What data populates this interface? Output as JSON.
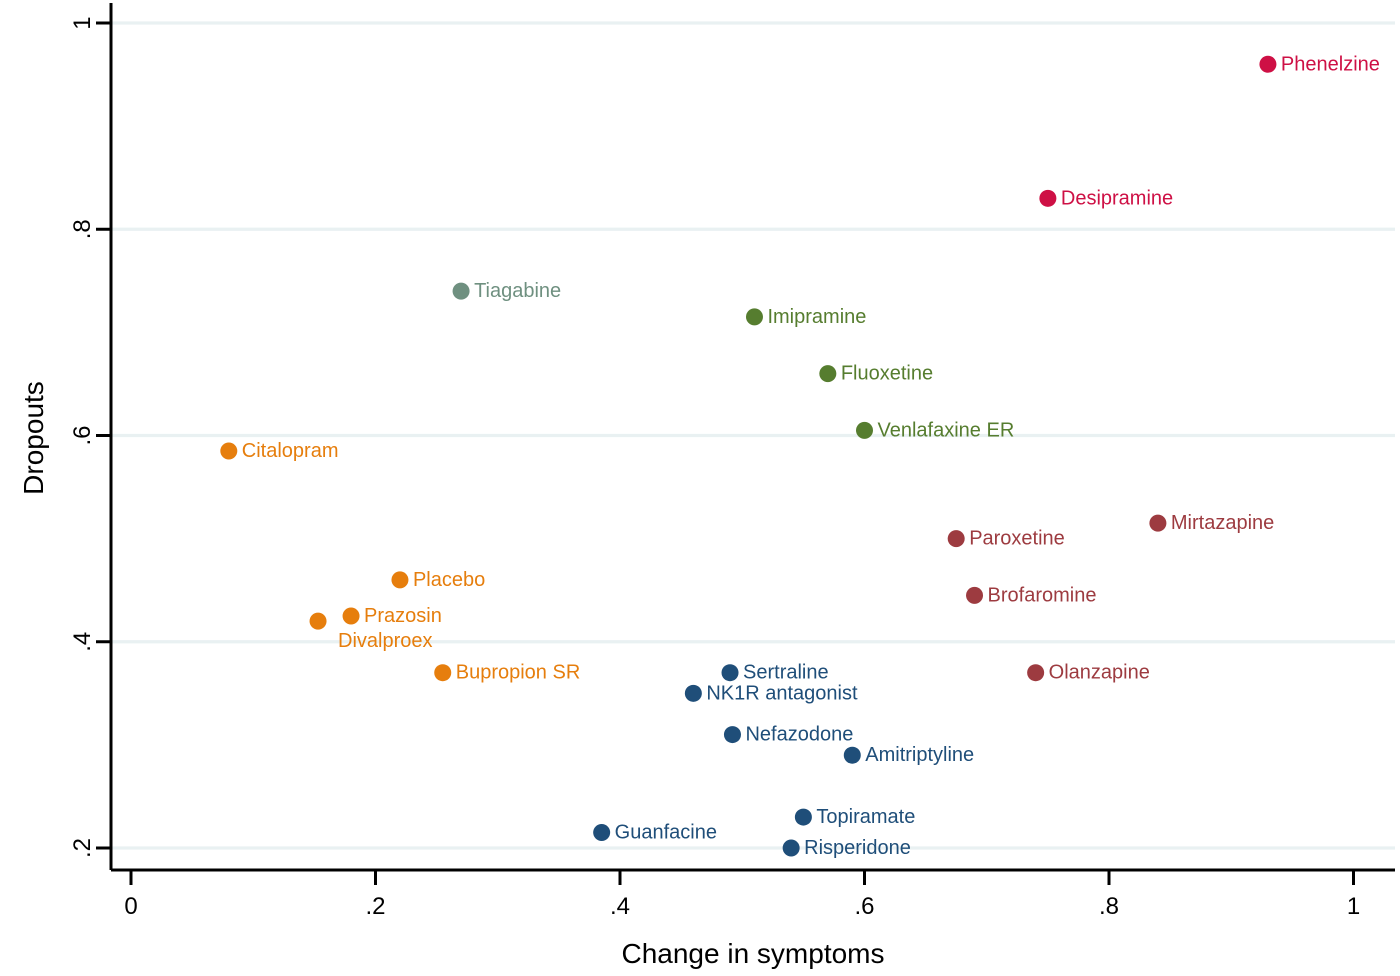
{
  "chart_data": {
    "type": "scatter",
    "title": "",
    "xlabel": "Change in symptoms",
    "ylabel": "Dropouts",
    "xlim": [
      0,
      1.03
    ],
    "ylim": [
      0.17,
      1.02
    ],
    "x_tick_values": [
      0,
      0.2,
      0.4,
      0.6,
      0.8,
      1
    ],
    "x_tick_labels": [
      "0",
      ".2",
      ".4",
      ".6",
      ".8",
      "1"
    ],
    "y_tick_values": [
      0.2,
      0.4,
      0.6,
      0.8,
      1
    ],
    "y_tick_labels": [
      ".2",
      ".4",
      ".6",
      ".8",
      "1"
    ],
    "grid": "horizontal",
    "gridline_color": "#e9f1f2",
    "axis_color": "#000000",
    "background_color": "#ffffff",
    "legend": "none (direct point labels)",
    "palette": {
      "crimson": "#ce1045",
      "maroon": "#9d3b40",
      "olive": "#567d2f",
      "sage": "#6f9080",
      "orange": "#e67e0d",
      "navy": "#1f4e79"
    },
    "points": [
      {
        "name": "Phenelzine",
        "x": 0.93,
        "y": 0.96,
        "group": "crimson",
        "label_pos": "right"
      },
      {
        "name": "Desipramine",
        "x": 0.75,
        "y": 0.83,
        "group": "crimson",
        "label_pos": "right"
      },
      {
        "name": "Tiagabine",
        "x": 0.27,
        "y": 0.74,
        "group": "sage",
        "label_pos": "right"
      },
      {
        "name": "Imipramine",
        "x": 0.51,
        "y": 0.715,
        "group": "olive",
        "label_pos": "right"
      },
      {
        "name": "Fluoxetine",
        "x": 0.57,
        "y": 0.66,
        "group": "olive",
        "label_pos": "right"
      },
      {
        "name": "Venlafaxine ER",
        "x": 0.6,
        "y": 0.605,
        "group": "olive",
        "label_pos": "right"
      },
      {
        "name": "Citalopram",
        "x": 0.08,
        "y": 0.585,
        "group": "orange",
        "label_pos": "right"
      },
      {
        "name": "Mirtazapine",
        "x": 0.84,
        "y": 0.515,
        "group": "maroon",
        "label_pos": "right"
      },
      {
        "name": "Paroxetine",
        "x": 0.675,
        "y": 0.5,
        "group": "maroon",
        "label_pos": "right"
      },
      {
        "name": "Placebo",
        "x": 0.22,
        "y": 0.46,
        "group": "orange",
        "label_pos": "right"
      },
      {
        "name": "Brofaromine",
        "x": 0.69,
        "y": 0.445,
        "group": "maroon",
        "label_pos": "right"
      },
      {
        "name": "Prazosin",
        "x": 0.18,
        "y": 0.425,
        "group": "orange",
        "label_pos": "right"
      },
      {
        "name": "Divalproex",
        "x": 0.153,
        "y": 0.42,
        "group": "orange",
        "label_pos": "below-right"
      },
      {
        "name": "Bupropion SR",
        "x": 0.255,
        "y": 0.37,
        "group": "orange",
        "label_pos": "right"
      },
      {
        "name": "Sertraline",
        "x": 0.49,
        "y": 0.37,
        "group": "navy",
        "label_pos": "right"
      },
      {
        "name": "Olanzapine",
        "x": 0.74,
        "y": 0.37,
        "group": "maroon",
        "label_pos": "right"
      },
      {
        "name": "NK1R antagonist",
        "x": 0.46,
        "y": 0.35,
        "group": "navy",
        "label_pos": "right"
      },
      {
        "name": "Nefazodone",
        "x": 0.492,
        "y": 0.31,
        "group": "navy",
        "label_pos": "right"
      },
      {
        "name": "Amitriptyline",
        "x": 0.59,
        "y": 0.29,
        "group": "navy",
        "label_pos": "right"
      },
      {
        "name": "Topiramate",
        "x": 0.55,
        "y": 0.23,
        "group": "navy",
        "label_pos": "right"
      },
      {
        "name": "Guanfacine",
        "x": 0.385,
        "y": 0.215,
        "group": "navy",
        "label_pos": "right"
      },
      {
        "name": "Risperidone",
        "x": 0.54,
        "y": 0.2,
        "group": "navy",
        "label_pos": "right"
      }
    ]
  }
}
